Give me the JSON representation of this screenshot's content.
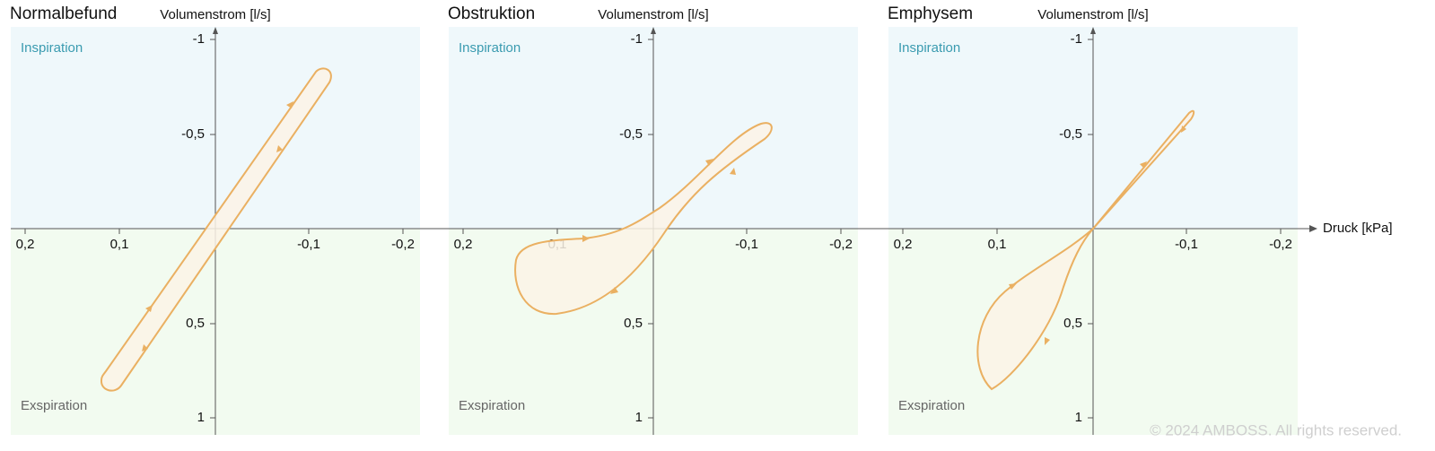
{
  "x_axis_label": "Druck [kPa]",
  "copyright": "© 2024 AMBOSS. All rights reserved.",
  "panels": [
    {
      "title": "Normalbefund",
      "y_axis_label": "Volumenstrom [l/s]",
      "upper_region": "Inspiration",
      "lower_region": "Exspiration",
      "y_ticks": [
        "-1",
        "-0,5",
        "0,5",
        "1"
      ],
      "x_ticks": [
        "0,2",
        "0,1",
        "-0,1",
        "-0,2"
      ]
    },
    {
      "title": "Obstruktion",
      "y_axis_label": "Volumenstrom [l/s]",
      "upper_region": "Inspiration",
      "lower_region": "Exspiration",
      "y_ticks": [
        "-1",
        "-0,5",
        "0,5",
        "1"
      ],
      "x_ticks": [
        "0,2",
        "0,1",
        "-0,1",
        "-0,2"
      ]
    },
    {
      "title": "Emphysem",
      "y_axis_label": "Volumenstrom [l/s]",
      "upper_region": "Inspiration",
      "lower_region": "Exspiration",
      "y_ticks": [
        "-1",
        "-0,5",
        "0,5",
        "1"
      ],
      "x_ticks": [
        "0,2",
        "0,1",
        "-0,1",
        "-0,2"
      ]
    }
  ]
}
